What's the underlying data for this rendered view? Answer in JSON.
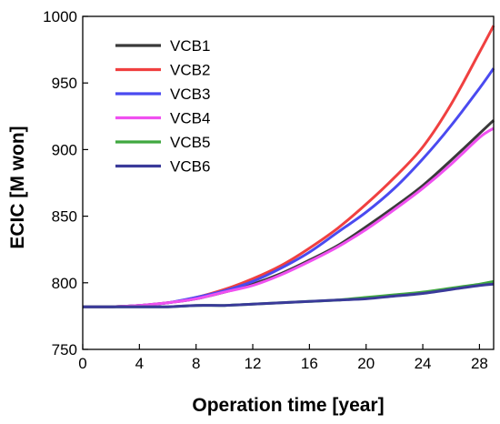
{
  "chart_data": {
    "type": "line",
    "title": "",
    "xlabel": "Operation time [year]",
    "ylabel": "ECIC [M won]",
    "xlim": [
      0,
      29
    ],
    "ylim": [
      750,
      1000
    ],
    "xticks": [
      0,
      4,
      8,
      12,
      16,
      20,
      24,
      28
    ],
    "yticks": [
      750,
      800,
      850,
      900,
      950,
      1000
    ],
    "grid": false,
    "legend_position": "top-left",
    "x": [
      0,
      2,
      4,
      6,
      8,
      10,
      12,
      14,
      16,
      18,
      20,
      22,
      24,
      26,
      28,
      29
    ],
    "series": [
      {
        "name": "VCB1",
        "color": "#3a3a3a",
        "values": [
          782,
          782,
          783,
          785,
          788,
          793,
          799,
          807,
          817,
          828,
          842,
          857,
          873,
          892,
          912,
          922
        ]
      },
      {
        "name": "VCB2",
        "color": "#f04040",
        "values": [
          782,
          782,
          783,
          785,
          789,
          795,
          803,
          813,
          826,
          841,
          859,
          879,
          902,
          934,
          973,
          993
        ]
      },
      {
        "name": "VCB3",
        "color": "#4a4af0",
        "values": [
          782,
          782,
          783,
          785,
          789,
          794,
          801,
          811,
          823,
          838,
          853,
          871,
          893,
          918,
          946,
          961
        ]
      },
      {
        "name": "VCB4",
        "color": "#f050f0",
        "values": [
          782,
          782,
          783,
          785,
          788,
          793,
          798,
          806,
          816,
          827,
          840,
          855,
          871,
          889,
          909,
          916
        ]
      },
      {
        "name": "VCB5",
        "color": "#40a840",
        "values": [
          782,
          782,
          782,
          782,
          783,
          783,
          784,
          785,
          786,
          787,
          789,
          791,
          793,
          796,
          799,
          801
        ]
      },
      {
        "name": "VCB6",
        "color": "#3a3a9a",
        "values": [
          782,
          782,
          782,
          782,
          783,
          783,
          784,
          785,
          786,
          787,
          788,
          790,
          792,
          795,
          798,
          799
        ]
      }
    ]
  }
}
